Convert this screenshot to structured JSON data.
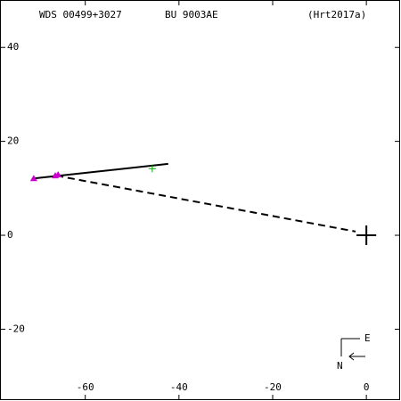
{
  "chart_data": {
    "type": "scatter",
    "title": "WDS 00499+3027",
    "subtitle": "BU 9003AE",
    "reference": "(Hrt2017a)",
    "compass": {
      "east": "E",
      "north": "N"
    },
    "xlim": [
      -78.2,
      7.2
    ],
    "ylim": [
      -35.1,
      50.1
    ],
    "xticks": [
      -60,
      -40,
      -20,
      0
    ],
    "yticks": [
      40,
      20,
      0,
      -20
    ],
    "grid": false,
    "series": [
      {
        "style": "line",
        "color": "#000000",
        "x": [
          -71.0,
          -42.3
        ],
        "y": [
          12.1,
          15.2
        ]
      },
      {
        "style": "dashed",
        "color": "#000000",
        "x": [
          -66.2,
          -2.3
        ],
        "y": [
          12.7,
          0.8
        ]
      },
      {
        "style": "triangle",
        "color": "#cc00cc",
        "x": [
          -71.0,
          -66.4,
          -65.8
        ],
        "y": [
          12.1,
          12.7,
          12.9
        ]
      },
      {
        "style": "plus",
        "color": "#00aa00",
        "x": [
          -45.7
        ],
        "y": [
          14.2
        ]
      },
      {
        "style": "cross",
        "color": "#000000",
        "x": [
          0
        ],
        "y": [
          0
        ]
      }
    ]
  }
}
